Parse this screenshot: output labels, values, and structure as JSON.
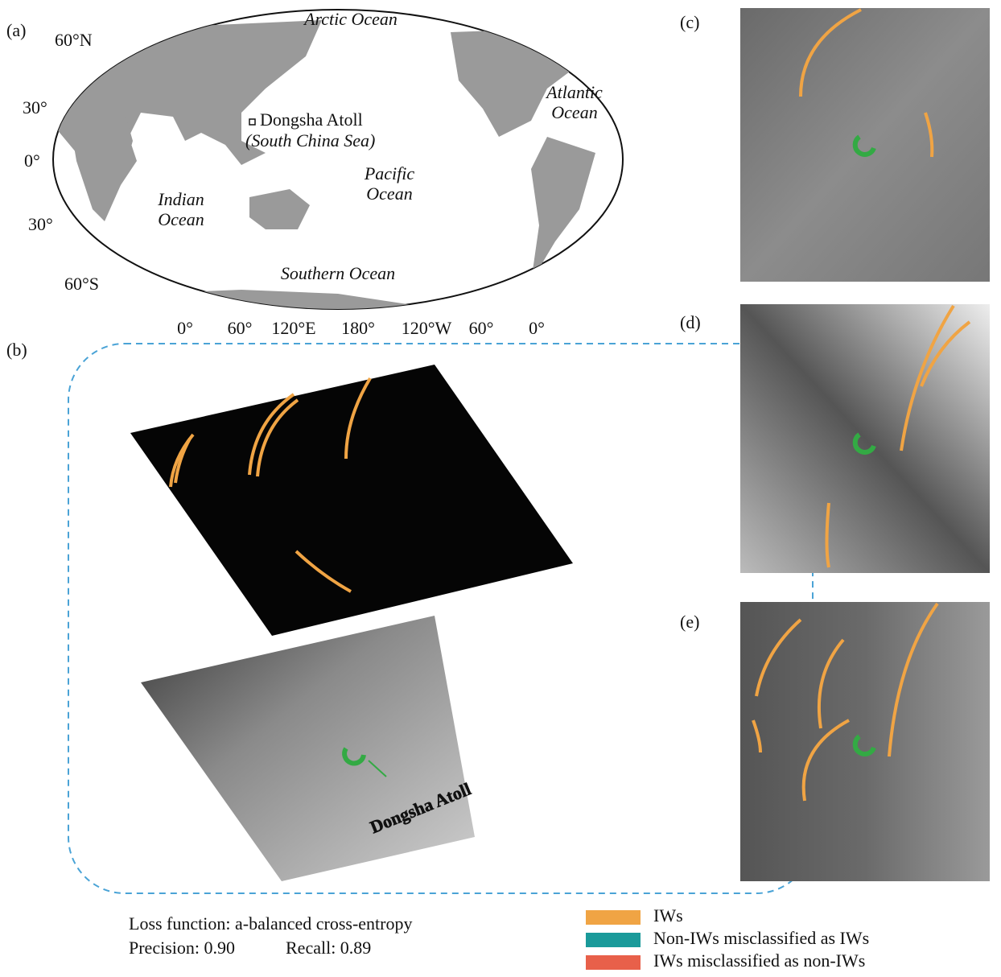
{
  "panel_labels": [
    "(a)",
    "(b)",
    "(c)",
    "(d)",
    "(e)"
  ],
  "map": {
    "oceans": [
      {
        "lines": [
          "Arctic Ocean"
        ]
      },
      {
        "lines": [
          "Atlantic",
          "Ocean"
        ]
      },
      {
        "lines": [
          "Pacific",
          "Ocean"
        ]
      },
      {
        "lines": [
          "Indian",
          "Ocean"
        ]
      },
      {
        "lines": [
          "Southern Ocean"
        ]
      }
    ],
    "site_name": "Dongsha Atoll",
    "site_region": "(South China Sea)",
    "lat_labels": [
      "60°N",
      "30°",
      "0°",
      "30°",
      "60°S"
    ],
    "lon_labels": [
      "0°",
      "60°",
      "120°E",
      "180°",
      "120°W",
      "60°",
      "0°"
    ]
  },
  "panel_b": {
    "annotation": "Dongsha Atoll"
  },
  "metrics": {
    "loss": "Loss function: a-balanced cross-entropy",
    "precision": "Precision: 0.90",
    "recall": "Recall: 0.89"
  },
  "legend": [
    {
      "label": "IWs",
      "color": "#f0a444"
    },
    {
      "label": "Non-IWs misclassified as IWs",
      "color": "#1a9a9a"
    },
    {
      "label": "IWs misclassified as non-IWs",
      "color": "#e8604a"
    }
  ]
}
